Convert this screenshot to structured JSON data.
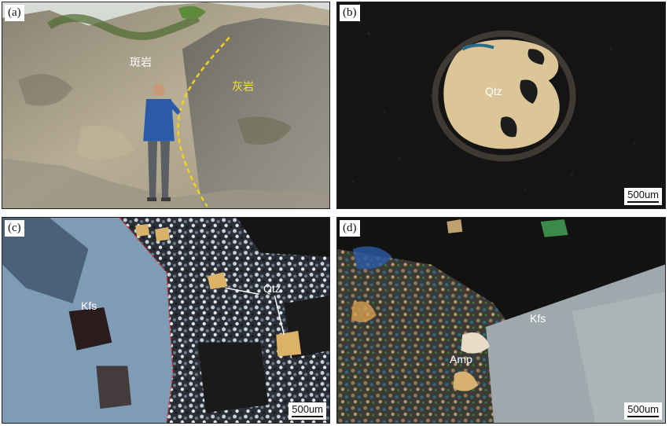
{
  "panels": {
    "a": {
      "label": "(a)",
      "porphyry": "斑岩",
      "limestone": "灰岩"
    },
    "b": {
      "label": "(b)",
      "mineral": "Qtz",
      "scale": "500um"
    },
    "c": {
      "label": "(c)",
      "mineral_kfs": "Kfs",
      "mineral_qtz": "Qtz",
      "scale": "500um"
    },
    "d": {
      "label": "(d)",
      "mineral_kfs": "Kfs",
      "mineral_amp": "Amp",
      "scale": "500um"
    }
  },
  "colors": {
    "outcrop_rock": "#a8a08c",
    "limestone_rock": "#7c7b72",
    "boundary_line": "#f0d21e",
    "groundmass_dark": "#141414",
    "quartz_grain": "#dcc596",
    "kfs_blue": "#7f9cb6",
    "kfs_grey": "#9fa8ac",
    "red_outline": "#d23a3a"
  },
  "icons": [
    "person-figure",
    "scale-bar"
  ]
}
